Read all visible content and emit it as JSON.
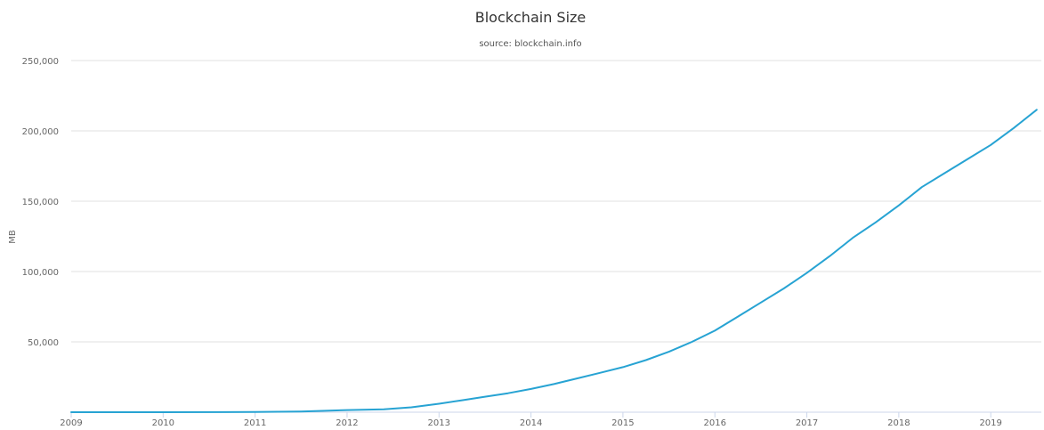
{
  "chart_data": {
    "type": "line",
    "title": "Blockchain Size",
    "subtitle": "source: blockchain.info",
    "ylabel": "MB",
    "xlabel": "",
    "xlim": [
      2009.0,
      2019.55
    ],
    "ylim": [
      0,
      250000
    ],
    "yticks": [
      {
        "value": 50000,
        "label": "50,000"
      },
      {
        "value": 100000,
        "label": "100,000"
      },
      {
        "value": 150000,
        "label": "150,000"
      },
      {
        "value": 200000,
        "label": "200,000"
      },
      {
        "value": 250000,
        "label": "250,000"
      }
    ],
    "xticks": [
      {
        "value": 2009,
        "label": "2009"
      },
      {
        "value": 2010,
        "label": "2010"
      },
      {
        "value": 2011,
        "label": "2011"
      },
      {
        "value": 2012,
        "label": "2012"
      },
      {
        "value": 2013,
        "label": "2013"
      },
      {
        "value": 2014,
        "label": "2014"
      },
      {
        "value": 2015,
        "label": "2015"
      },
      {
        "value": 2016,
        "label": "2016"
      },
      {
        "value": 2017,
        "label": "2017"
      },
      {
        "value": 2018,
        "label": "2018"
      },
      {
        "value": 2019,
        "label": "2019"
      }
    ],
    "grid": true,
    "legend": "none",
    "series": [
      {
        "color": "#27a3d3",
        "x": [
          2009.0,
          2010.0,
          2011.0,
          2011.5,
          2012.0,
          2012.4,
          2012.7,
          2013.0,
          2013.25,
          2013.5,
          2013.75,
          2014.0,
          2014.25,
          2014.5,
          2014.75,
          2015.0,
          2015.25,
          2015.5,
          2015.75,
          2016.0,
          2016.25,
          2016.5,
          2016.75,
          2017.0,
          2017.25,
          2017.5,
          2017.75,
          2018.0,
          2018.25,
          2018.5,
          2018.75,
          2019.0,
          2019.25,
          2019.5
        ],
        "y": [
          0,
          0,
          100,
          500,
          1500,
          2000,
          3500,
          6000,
          8500,
          11000,
          13500,
          16500,
          20000,
          24000,
          28000,
          32000,
          37000,
          43000,
          50000,
          58000,
          68000,
          78000,
          88000,
          99000,
          111000,
          124000,
          135000,
          147000,
          160000,
          170000,
          180000,
          190000,
          202000,
          215000
        ]
      }
    ]
  }
}
